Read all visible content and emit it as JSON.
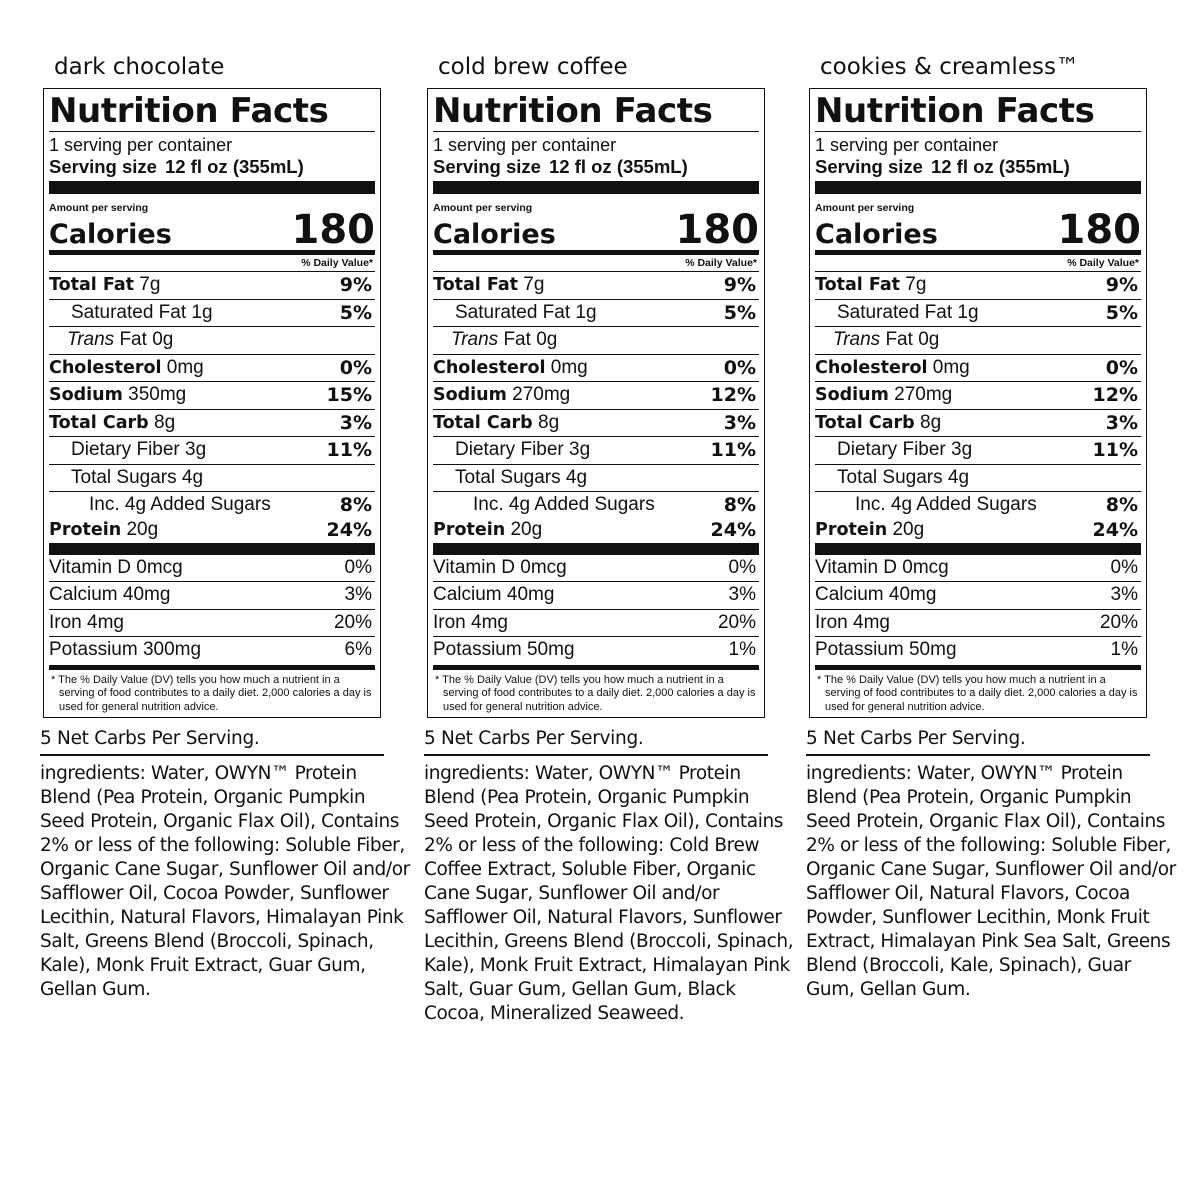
{
  "labels": [
    {
      "flavor": "dark chocolate",
      "title": "Nutrition Facts",
      "servings_per_container": "1 serving per container",
      "serving_size_label": "Serving size",
      "serving_size_value": "12 fl oz (355mL)",
      "amount_per_serving": "Amount per serving",
      "calories_label": "Calories",
      "calories_value": "180",
      "dv_header": "% Daily Value*",
      "total_fat": {
        "name": "Total Fat",
        "amount": "7g",
        "dv": "9%"
      },
      "saturated_fat": {
        "name": "Saturated Fat",
        "amount": "1g",
        "dv": "5%"
      },
      "trans_fat": {
        "name": "Trans",
        "suffix": "Fat",
        "amount": "0g"
      },
      "cholesterol": {
        "name": "Cholesterol",
        "amount": "0mg",
        "dv": "0%"
      },
      "sodium": {
        "name": "Sodium",
        "amount": "350mg",
        "dv": "15%"
      },
      "total_carb": {
        "name": "Total Carb",
        "amount": "8g",
        "dv": "3%"
      },
      "dietary_fiber": {
        "name": "Dietary Fiber",
        "amount": "3g",
        "dv": "11%"
      },
      "total_sugars": {
        "name": "Total Sugars",
        "amount": "4g"
      },
      "added_sugars": {
        "name": "Inc. 4g Added Sugars",
        "dv": "8%"
      },
      "protein": {
        "name": "Protein",
        "amount": "20g",
        "dv": "24%"
      },
      "vitamin_d": {
        "name": "Vitamin D 0mcg",
        "dv": "0%"
      },
      "calcium": {
        "name": "Calcium 40mg",
        "dv": "3%"
      },
      "iron": {
        "name": "Iron 4mg",
        "dv": "20%"
      },
      "potassium": {
        "name": "Potassium 300mg",
        "dv": "6%"
      },
      "footnote": "* The % Daily Value (DV) tells you how much a nutrient in a serving of food contributes to a daily diet. 2,000 calories a day is used for general nutrition advice.",
      "net_carbs": "5 Net Carbs Per Serving.",
      "ingredients_label": "ingredients:",
      "ingredients": "Water, OWYN™ Protein Blend (Pea Protein, Organic Pumpkin Seed Protein, Organic Flax Oil), Contains 2% or less of the following: Soluble Fiber, Organic Cane Sugar, Sunflower Oil and/or Safflower Oil, Cocoa Powder, Sunflower Lecithin, Natural Flavors, Himalayan Pink Salt, Greens Blend (Broccoli, Spinach, Kale), Monk Fruit Extract, Guar Gum, Gellan Gum."
    },
    {
      "flavor": "cold brew coffee",
      "title": "Nutrition Facts",
      "servings_per_container": "1 serving per container",
      "serving_size_label": "Serving size",
      "serving_size_value": "12 fl oz (355mL)",
      "amount_per_serving": "Amount per serving",
      "calories_label": "Calories",
      "calories_value": "180",
      "dv_header": "% Daily Value*",
      "total_fat": {
        "name": "Total Fat",
        "amount": "7g",
        "dv": "9%"
      },
      "saturated_fat": {
        "name": "Saturated Fat",
        "amount": "1g",
        "dv": "5%"
      },
      "trans_fat": {
        "name": "Trans",
        "suffix": "Fat",
        "amount": "0g"
      },
      "cholesterol": {
        "name": "Cholesterol",
        "amount": "0mg",
        "dv": "0%"
      },
      "sodium": {
        "name": "Sodium",
        "amount": "270mg",
        "dv": "12%"
      },
      "total_carb": {
        "name": "Total Carb",
        "amount": "8g",
        "dv": "3%"
      },
      "dietary_fiber": {
        "name": "Dietary Fiber",
        "amount": "3g",
        "dv": "11%"
      },
      "total_sugars": {
        "name": "Total Sugars",
        "amount": "4g"
      },
      "added_sugars": {
        "name": "Inc. 4g Added Sugars",
        "dv": "8%"
      },
      "protein": {
        "name": "Protein",
        "amount": "20g",
        "dv": "24%"
      },
      "vitamin_d": {
        "name": "Vitamin D 0mcg",
        "dv": "0%"
      },
      "calcium": {
        "name": "Calcium 40mg",
        "dv": "3%"
      },
      "iron": {
        "name": "Iron 4mg",
        "dv": "20%"
      },
      "potassium": {
        "name": "Potassium 50mg",
        "dv": "1%"
      },
      "footnote": "* The % Daily Value (DV) tells you how much a nutrient in a serving of food contributes to a daily diet. 2,000 calories a day is used for general nutrition advice.",
      "net_carbs": "5 Net Carbs Per Serving.",
      "ingredients_label": "ingredients:",
      "ingredients": "Water, OWYN™ Protein Blend (Pea Protein, Organic Pumpkin Seed Protein, Organic Flax Oil), Contains 2% or less of the following: Cold Brew Coffee Extract, Soluble Fiber, Organic Cane Sugar, Sunflower Oil and/or Safflower Oil, Natural Flavors, Sunflower Lecithin, Greens Blend (Broccoli, Spinach, Kale), Monk Fruit Extract, Himalayan Pink Salt, Guar Gum, Gellan Gum, Black Cocoa, Mineralized Seaweed."
    },
    {
      "flavor": "cookies & creamless™",
      "title": "Nutrition Facts",
      "servings_per_container": "1 serving per container",
      "serving_size_label": "Serving size",
      "serving_size_value": "12 fl oz (355mL)",
      "amount_per_serving": "Amount per serving",
      "calories_label": "Calories",
      "calories_value": "180",
      "dv_header": "% Daily Value*",
      "total_fat": {
        "name": "Total Fat",
        "amount": "7g",
        "dv": "9%"
      },
      "saturated_fat": {
        "name": "Saturated Fat",
        "amount": "1g",
        "dv": "5%"
      },
      "trans_fat": {
        "name": "Trans",
        "suffix": "Fat",
        "amount": "0g"
      },
      "cholesterol": {
        "name": "Cholesterol",
        "amount": "0mg",
        "dv": "0%"
      },
      "sodium": {
        "name": "Sodium",
        "amount": "270mg",
        "dv": "12%"
      },
      "total_carb": {
        "name": "Total Carb",
        "amount": "8g",
        "dv": "3%"
      },
      "dietary_fiber": {
        "name": "Dietary Fiber",
        "amount": "3g",
        "dv": "11%"
      },
      "total_sugars": {
        "name": "Total Sugars",
        "amount": "4g"
      },
      "added_sugars": {
        "name": "Inc. 4g Added Sugars",
        "dv": "8%"
      },
      "protein": {
        "name": "Protein",
        "amount": "20g",
        "dv": "24%"
      },
      "vitamin_d": {
        "name": "Vitamin D 0mcg",
        "dv": "0%"
      },
      "calcium": {
        "name": "Calcium 40mg",
        "dv": "3%"
      },
      "iron": {
        "name": "Iron 4mg",
        "dv": "20%"
      },
      "potassium": {
        "name": "Potassium 50mg",
        "dv": "1%"
      },
      "footnote": "* The % Daily Value (DV) tells you how much a nutrient in a serving of food contributes to a daily diet. 2,000 calories a day is used for general nutrition advice.",
      "net_carbs": "5 Net Carbs Per Serving.",
      "ingredients_label": "ingredients:",
      "ingredients": "Water, OWYN™ Protein Blend (Pea Protein, Organic Pumpkin Seed Protein, Organic Flax Oil), Contains 2% or less of the following: Soluble Fiber, Organic Cane Sugar, Sunflower Oil and/or Safflower Oil, Natural Flavors, Cocoa Powder, Sunflower Lecithin, Monk Fruit Extract, Himalayan Pink Sea Salt, Greens Blend (Broccoli, Kale, Spinach), Guar Gum, Gellan Gum."
    }
  ]
}
